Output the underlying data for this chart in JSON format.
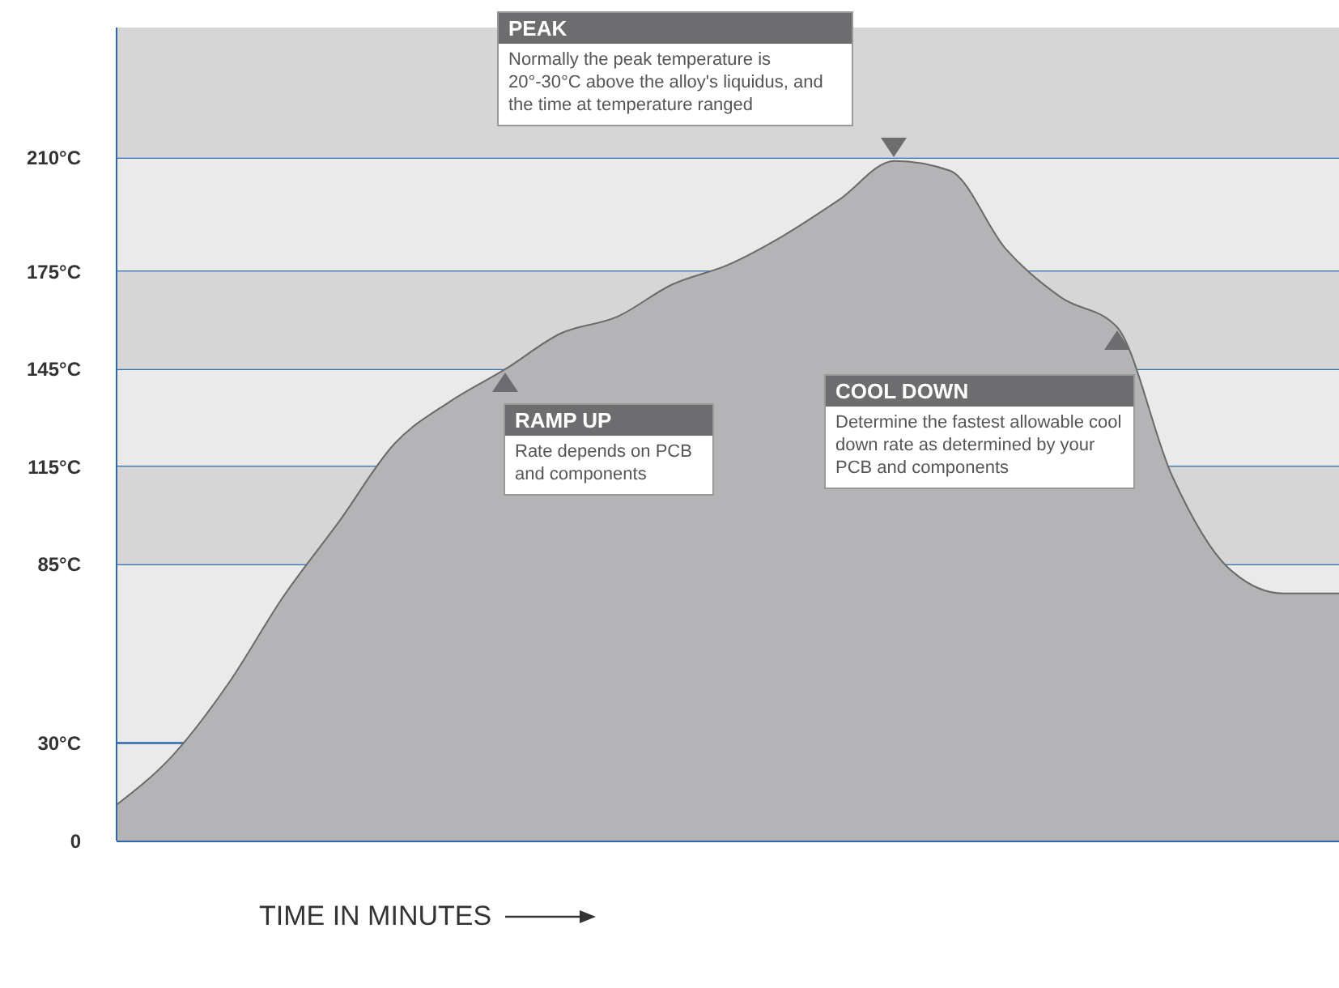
{
  "chart_data": {
    "type": "area",
    "xlabel": "TIME IN MINUTES",
    "categories": [
      null,
      null,
      null,
      null,
      null,
      null,
      null,
      null,
      null,
      null,
      null,
      null,
      null,
      null,
      null,
      null,
      null,
      null,
      null,
      null,
      null,
      null,
      null
    ],
    "series": [
      {
        "color": "#b4b4b6",
        "values": [
          11,
          26,
          48,
          75,
          98,
          122,
          135,
          145,
          156,
          161,
          171,
          177,
          186,
          197,
          209,
          206,
          182,
          167,
          158,
          112,
          84,
          76,
          76
        ]
      }
    ],
    "ylim": [
      0,
      250
    ],
    "yticks": [
      0,
      {
        "value": 30,
        "label": "30°C"
      },
      {
        "value": 85,
        "label": "85°C"
      },
      {
        "value": 115,
        "label": "115°C"
      },
      {
        "value": 145,
        "label": "145°C"
      },
      {
        "value": 175,
        "label": "175°C"
      },
      {
        "value": 210,
        "label": "210°C"
      }
    ],
    "grid": "y",
    "bands": [
      {
        "axis": "y",
        "from": 210,
        "to": 250,
        "color": "#d6d6d6"
      },
      {
        "axis": "y",
        "from": 145,
        "to": 175,
        "color": "#d6d6d6"
      },
      {
        "axis": "y",
        "from": 85,
        "to": 115,
        "color": "#d6d6d6"
      }
    ],
    "annotations": [
      "PEAK",
      "Normally the peak temperature is 20°-30°C above the alloy's liquidus, and the time at temperature ranged",
      "RAMP UP",
      "Rate depends on PCB and components",
      "COOL DOWN",
      "Determine the fastest allowable cool down rate as determined by your PCB and components"
    ]
  }
}
